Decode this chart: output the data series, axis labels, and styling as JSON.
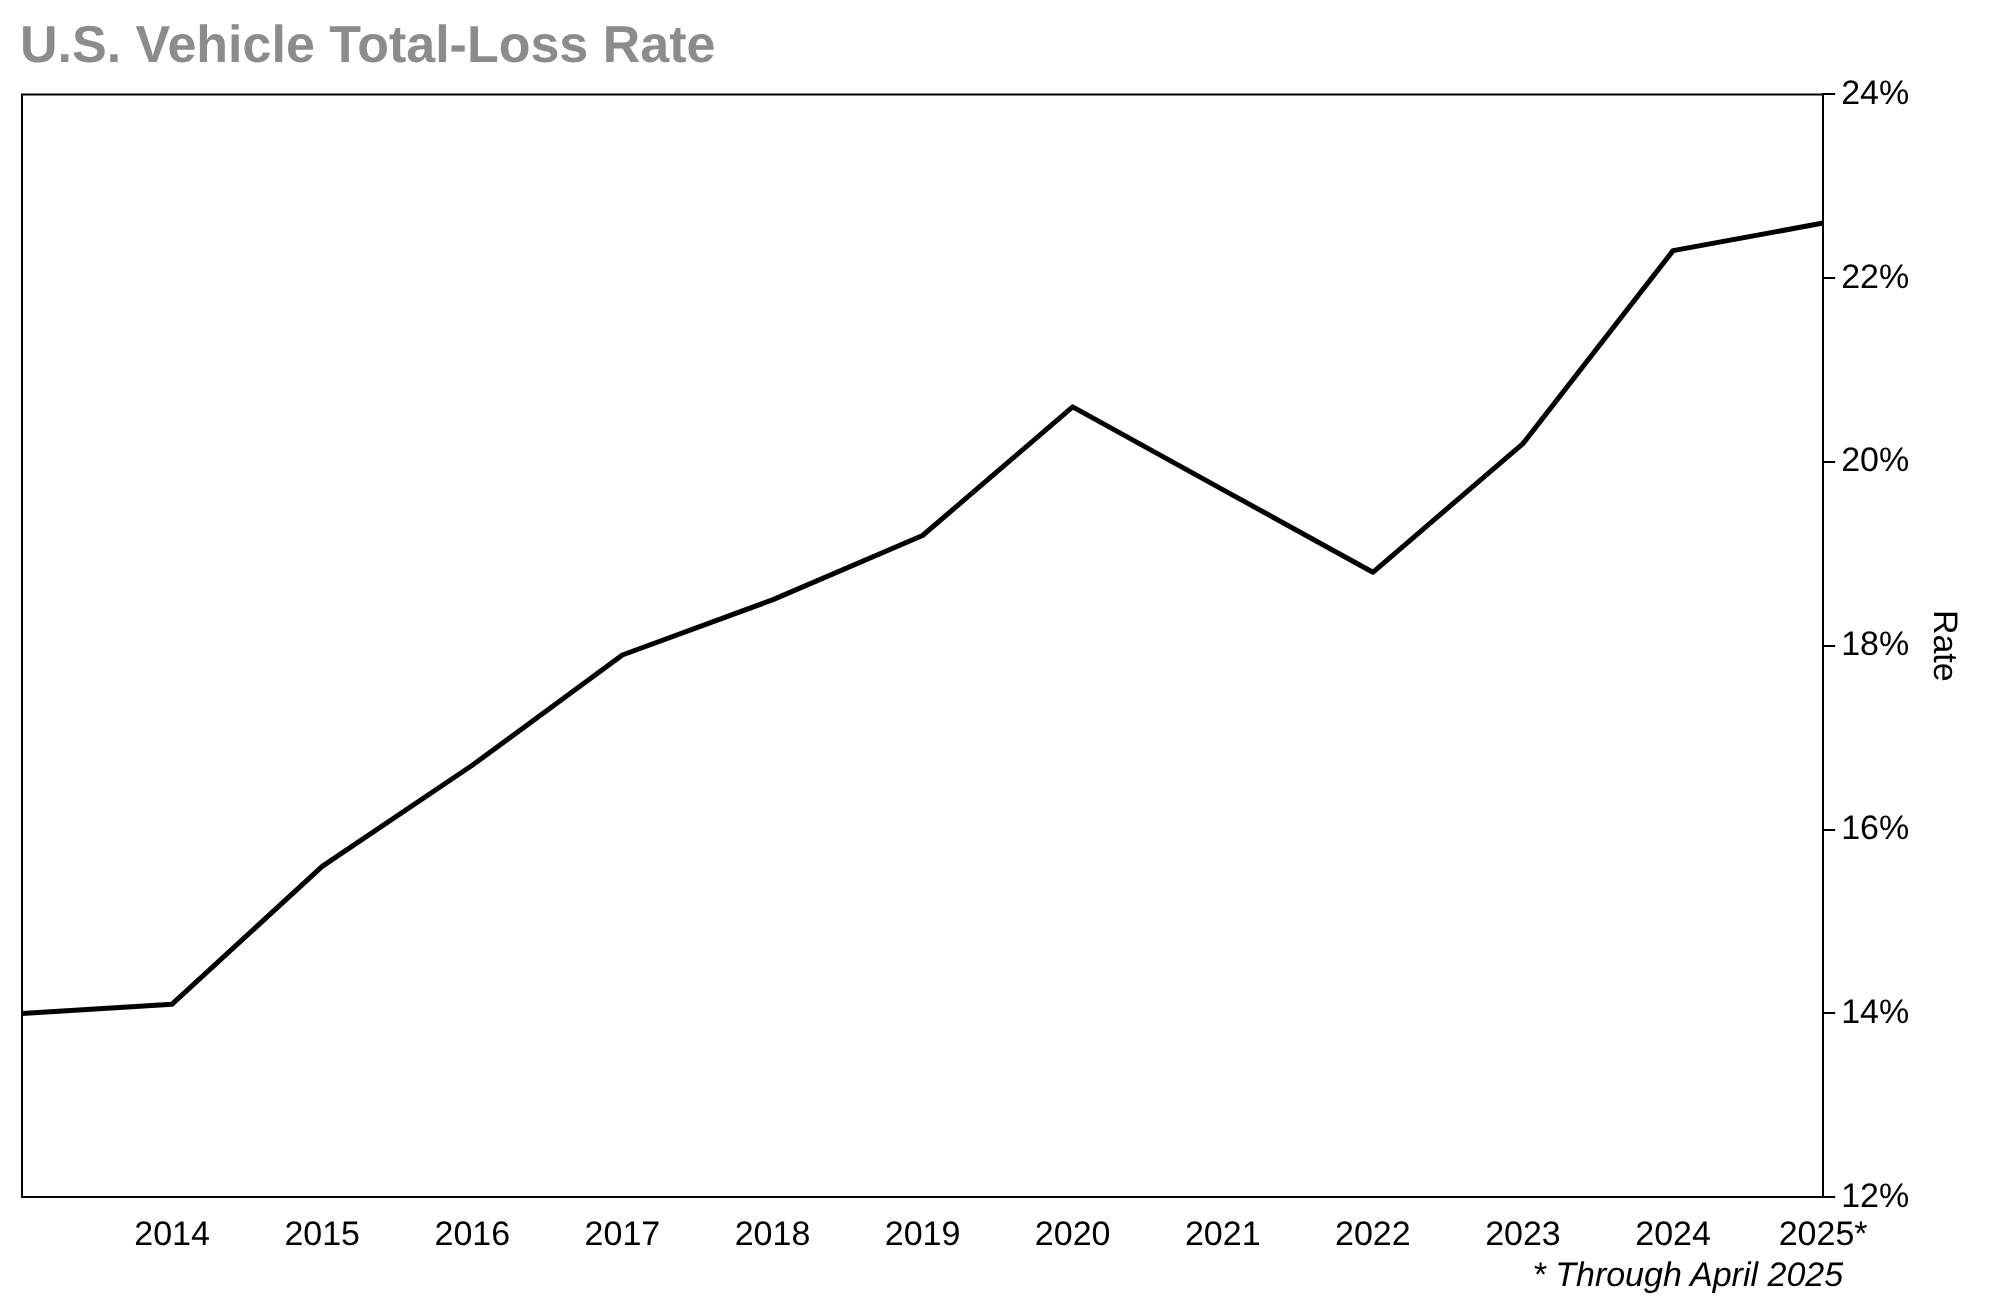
{
  "chart_data": {
    "type": "line",
    "title": "U.S. Vehicle Total-Loss Rate",
    "ylabel": "Rate",
    "categories": [
      null,
      "2014",
      "2015",
      "2016",
      "2017",
      "2018",
      "2019",
      "2020",
      "2021",
      "2022",
      "2023",
      "2024",
      "2025*"
    ],
    "series": [
      {
        "color": "#000000",
        "values": [
          14.0,
          14.1,
          15.6,
          16.7,
          17.9,
          18.5,
          19.2,
          20.6,
          19.7,
          18.8,
          20.2,
          22.3,
          22.6
        ]
      }
    ],
    "ylim": [
      12,
      24
    ],
    "yticks": [
      {
        "value": 12,
        "label": "12%"
      },
      {
        "value": 14,
        "label": "14%"
      },
      {
        "value": 16,
        "label": "16%"
      },
      {
        "value": 18,
        "label": "18%"
      },
      {
        "value": 20,
        "label": "20%"
      },
      {
        "value": 22,
        "label": "22%"
      },
      {
        "value": 24,
        "label": "24%"
      }
    ],
    "grid": false,
    "legend": false,
    "marker": "none",
    "line_style": "solid",
    "annotations": [
      "* Through April 2025"
    ]
  }
}
